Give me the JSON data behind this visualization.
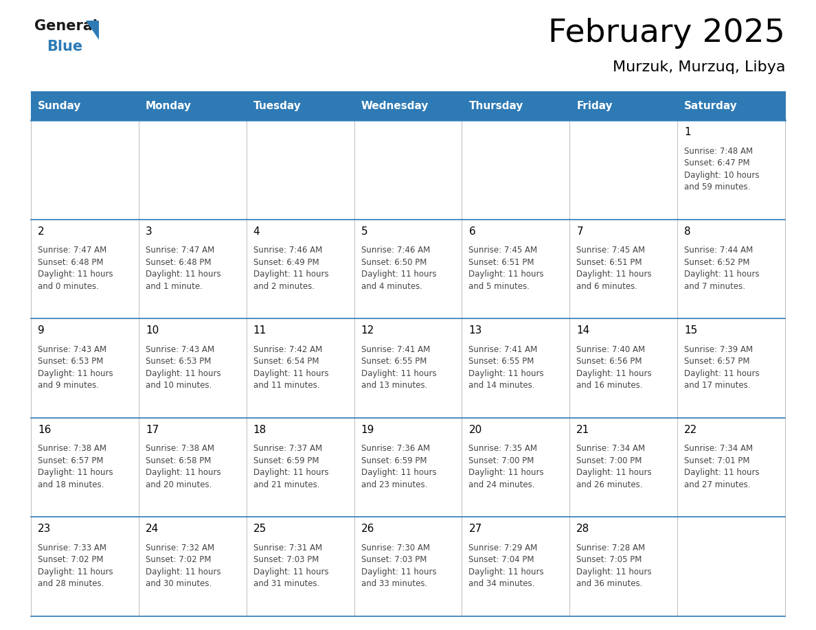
{
  "title": "February 2025",
  "subtitle": "Murzuk, Murzuq, Libya",
  "header_bg": "#2E7AB5",
  "header_text_color": "#FFFFFF",
  "border_color": "#2E7AB5",
  "day_names": [
    "Sunday",
    "Monday",
    "Tuesday",
    "Wednesday",
    "Thursday",
    "Friday",
    "Saturday"
  ],
  "days": [
    {
      "day": 1,
      "col": 6,
      "row": 0,
      "sunrise": "7:48 AM",
      "sunset": "6:47 PM",
      "daylight_line1": "Daylight: 10 hours",
      "daylight_line2": "and 59 minutes."
    },
    {
      "day": 2,
      "col": 0,
      "row": 1,
      "sunrise": "7:47 AM",
      "sunset": "6:48 PM",
      "daylight_line1": "Daylight: 11 hours",
      "daylight_line2": "and 0 minutes."
    },
    {
      "day": 3,
      "col": 1,
      "row": 1,
      "sunrise": "7:47 AM",
      "sunset": "6:48 PM",
      "daylight_line1": "Daylight: 11 hours",
      "daylight_line2": "and 1 minute."
    },
    {
      "day": 4,
      "col": 2,
      "row": 1,
      "sunrise": "7:46 AM",
      "sunset": "6:49 PM",
      "daylight_line1": "Daylight: 11 hours",
      "daylight_line2": "and 2 minutes."
    },
    {
      "day": 5,
      "col": 3,
      "row": 1,
      "sunrise": "7:46 AM",
      "sunset": "6:50 PM",
      "daylight_line1": "Daylight: 11 hours",
      "daylight_line2": "and 4 minutes."
    },
    {
      "day": 6,
      "col": 4,
      "row": 1,
      "sunrise": "7:45 AM",
      "sunset": "6:51 PM",
      "daylight_line1": "Daylight: 11 hours",
      "daylight_line2": "and 5 minutes."
    },
    {
      "day": 7,
      "col": 5,
      "row": 1,
      "sunrise": "7:45 AM",
      "sunset": "6:51 PM",
      "daylight_line1": "Daylight: 11 hours",
      "daylight_line2": "and 6 minutes."
    },
    {
      "day": 8,
      "col": 6,
      "row": 1,
      "sunrise": "7:44 AM",
      "sunset": "6:52 PM",
      "daylight_line1": "Daylight: 11 hours",
      "daylight_line2": "and 7 minutes."
    },
    {
      "day": 9,
      "col": 0,
      "row": 2,
      "sunrise": "7:43 AM",
      "sunset": "6:53 PM",
      "daylight_line1": "Daylight: 11 hours",
      "daylight_line2": "and 9 minutes."
    },
    {
      "day": 10,
      "col": 1,
      "row": 2,
      "sunrise": "7:43 AM",
      "sunset": "6:53 PM",
      "daylight_line1": "Daylight: 11 hours",
      "daylight_line2": "and 10 minutes."
    },
    {
      "day": 11,
      "col": 2,
      "row": 2,
      "sunrise": "7:42 AM",
      "sunset": "6:54 PM",
      "daylight_line1": "Daylight: 11 hours",
      "daylight_line2": "and 11 minutes."
    },
    {
      "day": 12,
      "col": 3,
      "row": 2,
      "sunrise": "7:41 AM",
      "sunset": "6:55 PM",
      "daylight_line1": "Daylight: 11 hours",
      "daylight_line2": "and 13 minutes."
    },
    {
      "day": 13,
      "col": 4,
      "row": 2,
      "sunrise": "7:41 AM",
      "sunset": "6:55 PM",
      "daylight_line1": "Daylight: 11 hours",
      "daylight_line2": "and 14 minutes."
    },
    {
      "day": 14,
      "col": 5,
      "row": 2,
      "sunrise": "7:40 AM",
      "sunset": "6:56 PM",
      "daylight_line1": "Daylight: 11 hours",
      "daylight_line2": "and 16 minutes."
    },
    {
      "day": 15,
      "col": 6,
      "row": 2,
      "sunrise": "7:39 AM",
      "sunset": "6:57 PM",
      "daylight_line1": "Daylight: 11 hours",
      "daylight_line2": "and 17 minutes."
    },
    {
      "day": 16,
      "col": 0,
      "row": 3,
      "sunrise": "7:38 AM",
      "sunset": "6:57 PM",
      "daylight_line1": "Daylight: 11 hours",
      "daylight_line2": "and 18 minutes."
    },
    {
      "day": 17,
      "col": 1,
      "row": 3,
      "sunrise": "7:38 AM",
      "sunset": "6:58 PM",
      "daylight_line1": "Daylight: 11 hours",
      "daylight_line2": "and 20 minutes."
    },
    {
      "day": 18,
      "col": 2,
      "row": 3,
      "sunrise": "7:37 AM",
      "sunset": "6:59 PM",
      "daylight_line1": "Daylight: 11 hours",
      "daylight_line2": "and 21 minutes."
    },
    {
      "day": 19,
      "col": 3,
      "row": 3,
      "sunrise": "7:36 AM",
      "sunset": "6:59 PM",
      "daylight_line1": "Daylight: 11 hours",
      "daylight_line2": "and 23 minutes."
    },
    {
      "day": 20,
      "col": 4,
      "row": 3,
      "sunrise": "7:35 AM",
      "sunset": "7:00 PM",
      "daylight_line1": "Daylight: 11 hours",
      "daylight_line2": "and 24 minutes."
    },
    {
      "day": 21,
      "col": 5,
      "row": 3,
      "sunrise": "7:34 AM",
      "sunset": "7:00 PM",
      "daylight_line1": "Daylight: 11 hours",
      "daylight_line2": "and 26 minutes."
    },
    {
      "day": 22,
      "col": 6,
      "row": 3,
      "sunrise": "7:34 AM",
      "sunset": "7:01 PM",
      "daylight_line1": "Daylight: 11 hours",
      "daylight_line2": "and 27 minutes."
    },
    {
      "day": 23,
      "col": 0,
      "row": 4,
      "sunrise": "7:33 AM",
      "sunset": "7:02 PM",
      "daylight_line1": "Daylight: 11 hours",
      "daylight_line2": "and 28 minutes."
    },
    {
      "day": 24,
      "col": 1,
      "row": 4,
      "sunrise": "7:32 AM",
      "sunset": "7:02 PM",
      "daylight_line1": "Daylight: 11 hours",
      "daylight_line2": "and 30 minutes."
    },
    {
      "day": 25,
      "col": 2,
      "row": 4,
      "sunrise": "7:31 AM",
      "sunset": "7:03 PM",
      "daylight_line1": "Daylight: 11 hours",
      "daylight_line2": "and 31 minutes."
    },
    {
      "day": 26,
      "col": 3,
      "row": 4,
      "sunrise": "7:30 AM",
      "sunset": "7:03 PM",
      "daylight_line1": "Daylight: 11 hours",
      "daylight_line2": "and 33 minutes."
    },
    {
      "day": 27,
      "col": 4,
      "row": 4,
      "sunrise": "7:29 AM",
      "sunset": "7:04 PM",
      "daylight_line1": "Daylight: 11 hours",
      "daylight_line2": "and 34 minutes."
    },
    {
      "day": 28,
      "col": 5,
      "row": 4,
      "sunrise": "7:28 AM",
      "sunset": "7:05 PM",
      "daylight_line1": "Daylight: 11 hours",
      "daylight_line2": "and 36 minutes."
    }
  ],
  "num_rows": 5,
  "num_cols": 7,
  "title_fontsize": 34,
  "subtitle_fontsize": 16,
  "day_num_fontsize": 11,
  "cell_text_fontsize": 8.5,
  "col_header_fontsize": 11
}
